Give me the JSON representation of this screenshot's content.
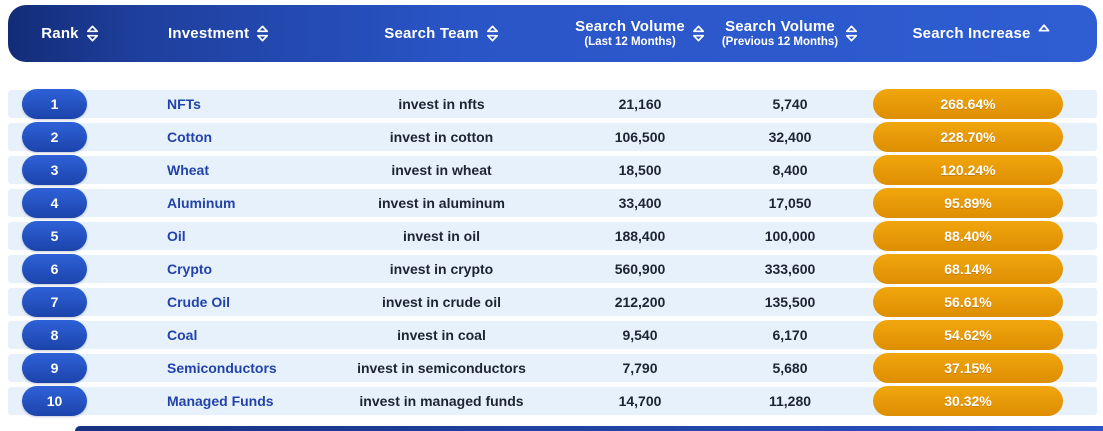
{
  "header": {
    "columns": [
      {
        "label": "Rank",
        "sub": "",
        "sort": "both"
      },
      {
        "label": "Investment",
        "sub": "",
        "sort": "both"
      },
      {
        "label": "Search Team",
        "sub": "",
        "sort": "both"
      },
      {
        "label": "Search Volume",
        "sub": "(Last 12 Months)",
        "sort": "both"
      },
      {
        "label": "Search Volume",
        "sub": "(Previous 12 Months)",
        "sort": "both"
      },
      {
        "label": "Search Increase",
        "sub": "",
        "sort": "ascending"
      }
    ]
  },
  "rows": [
    {
      "rank": "1",
      "investment": "NFTs",
      "term": "invest in nfts",
      "vol_last": "21,160",
      "vol_prev": "5,740",
      "increase": "268.64%"
    },
    {
      "rank": "2",
      "investment": "Cotton",
      "term": "invest in cotton",
      "vol_last": "106,500",
      "vol_prev": "32,400",
      "increase": "228.70%"
    },
    {
      "rank": "3",
      "investment": "Wheat",
      "term": "invest in wheat",
      "vol_last": "18,500",
      "vol_prev": "8,400",
      "increase": "120.24%"
    },
    {
      "rank": "4",
      "investment": "Aluminum",
      "term": "invest in aluminum",
      "vol_last": "33,400",
      "vol_prev": "17,050",
      "increase": "95.89%"
    },
    {
      "rank": "5",
      "investment": "Oil",
      "term": "invest in oil",
      "vol_last": "188,400",
      "vol_prev": "100,000",
      "increase": "88.40%"
    },
    {
      "rank": "6",
      "investment": "Crypto",
      "term": "invest in crypto",
      "vol_last": "560,900",
      "vol_prev": "333,600",
      "increase": "68.14%"
    },
    {
      "rank": "7",
      "investment": "Crude Oil",
      "term": "invest in crude oil",
      "vol_last": "212,200",
      "vol_prev": "135,500",
      "increase": "56.61%"
    },
    {
      "rank": "8",
      "investment": "Coal",
      "term": "invest in coal",
      "vol_last": "9,540",
      "vol_prev": "6,170",
      "increase": "54.62%"
    },
    {
      "rank": "9",
      "investment": "Semiconductors",
      "term": "invest in semiconductors",
      "vol_last": "7,790",
      "vol_prev": "5,680",
      "increase": "37.15%"
    },
    {
      "rank": "10",
      "investment": "Managed Funds",
      "term": "invest in managed funds",
      "vol_last": "14,700",
      "vol_prev": "11,280",
      "increase": "30.32%"
    }
  ],
  "colors": {
    "header_grad_a": "#122c77",
    "header_grad_d": "#2e5ed2",
    "row_bg": "#e6f1fb",
    "rank_pill_a": "#2e62d8",
    "rank_pill_b": "#1c44ab",
    "investment_text": "#2343ab",
    "cell_text": "#1d2433",
    "increase_pill_a": "#f1a60d",
    "increase_pill_b": "#dd8e03"
  }
}
